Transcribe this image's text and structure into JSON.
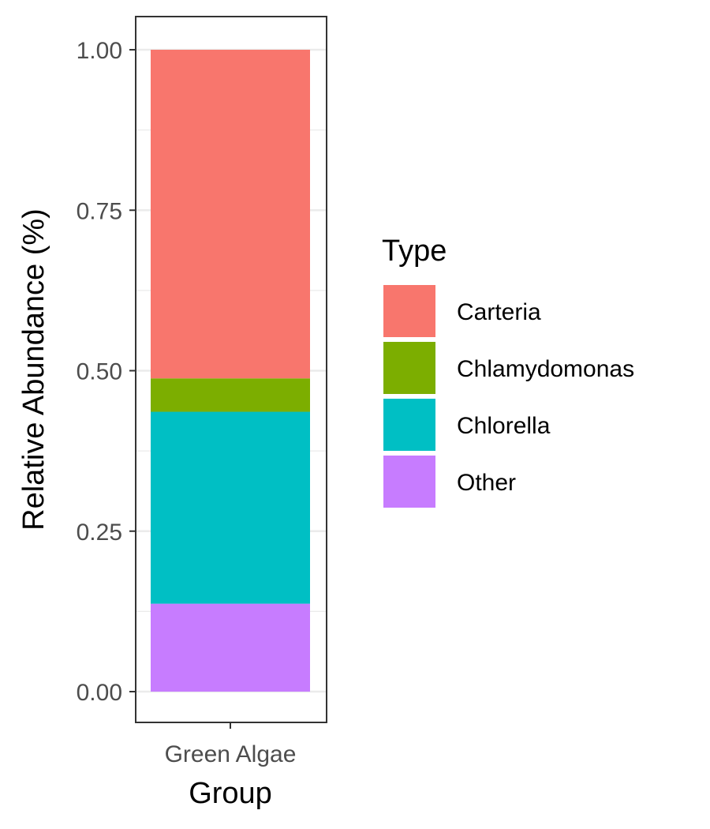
{
  "chart_data": {
    "type": "bar",
    "stacked": true,
    "xlabel": "Group",
    "ylabel": "Relative Abundance (%)",
    "categories": [
      "Green Algae"
    ],
    "ylim": [
      0,
      1.0
    ],
    "yticks": [
      "0.00",
      "0.25",
      "0.50",
      "0.75",
      "1.00"
    ],
    "ytick_values": [
      0,
      0.25,
      0.5,
      0.75,
      1.0
    ],
    "grid": true,
    "legend": {
      "title": "Type",
      "position": "right"
    },
    "series": [
      {
        "name": "Carteria",
        "color": "#F8766D",
        "values": [
          0.512
        ]
      },
      {
        "name": "Chlamydomonas",
        "color": "#7CAE00",
        "values": [
          0.052
        ]
      },
      {
        "name": "Chlorella",
        "color": "#00BFC4",
        "values": [
          0.299
        ]
      },
      {
        "name": "Other",
        "color": "#C77CFF",
        "values": [
          0.137
        ]
      }
    ],
    "stack_order_bottom_to_top": [
      "Other",
      "Chlorella",
      "Chlamydomonas",
      "Carteria"
    ]
  }
}
